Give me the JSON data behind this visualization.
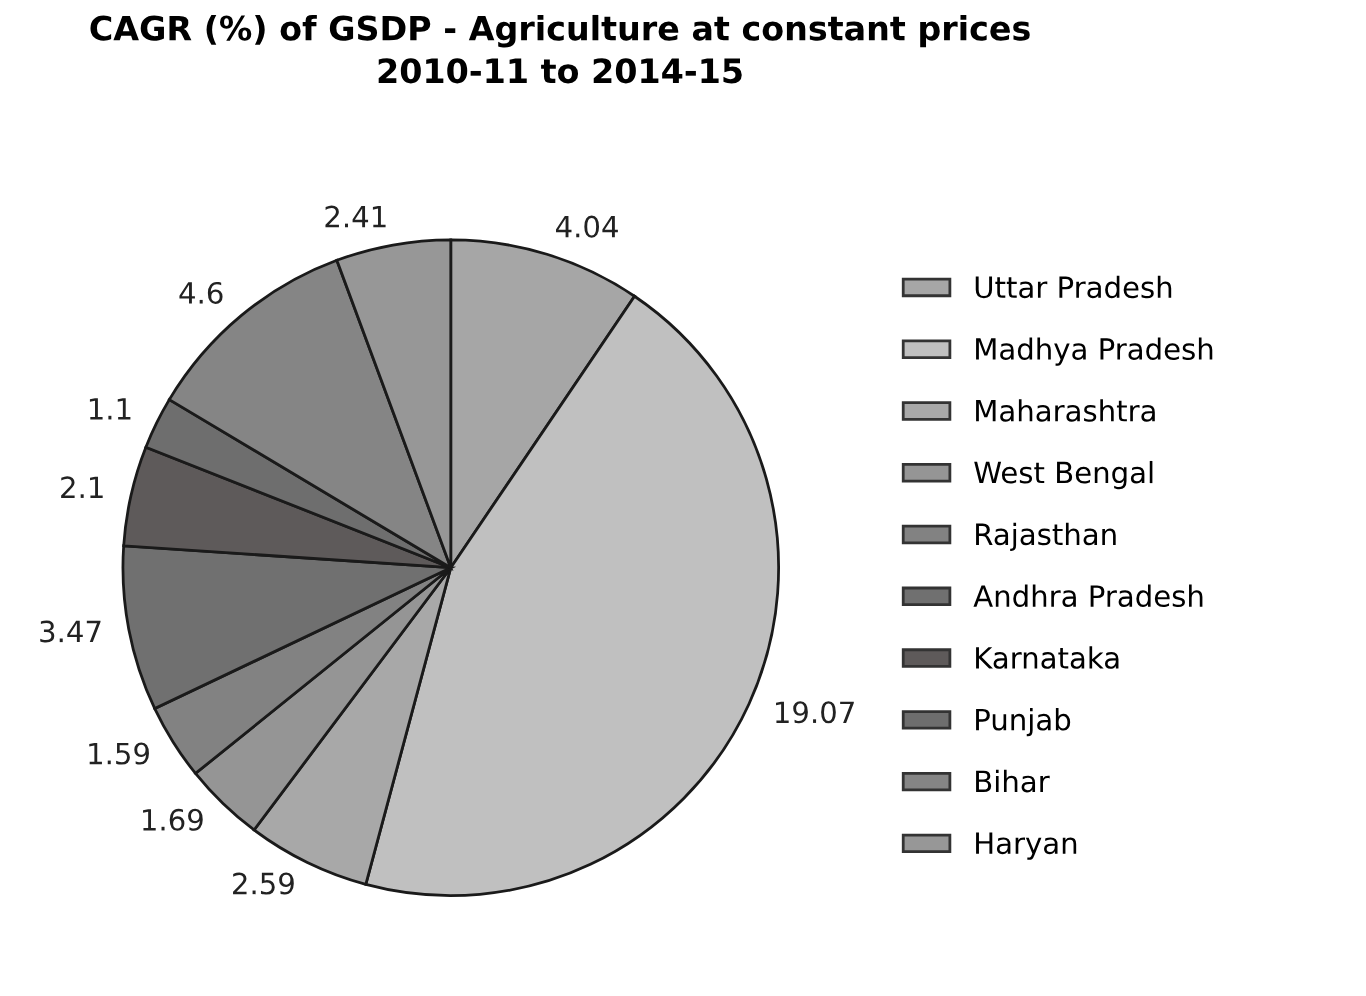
{
  "chart_data": {
    "type": "pie",
    "title": "CAGR (%) of GSDP - Agriculture at constant prices\n2010-11 to 2014-15",
    "categories": [
      "Uttar Pradesh",
      "Madhya Pradesh",
      "Maharashtra",
      "West Bengal",
      "Rajasthan",
      "Andhra Pradesh",
      "Karnataka",
      "Punjab",
      "Bihar",
      "Haryan"
    ],
    "values": [
      4.04,
      19.07,
      2.59,
      1.69,
      1.59,
      3.47,
      2.1,
      1.1,
      4.6,
      2.41
    ],
    "colors": [
      "#a6a6a6",
      "#c0c0c0",
      "#a8a8a8",
      "#959595",
      "#828282",
      "#707070",
      "#5e5a5a",
      "#6e6e6e",
      "#858585",
      "#979797"
    ],
    "data_labels": true,
    "legend": "right"
  }
}
